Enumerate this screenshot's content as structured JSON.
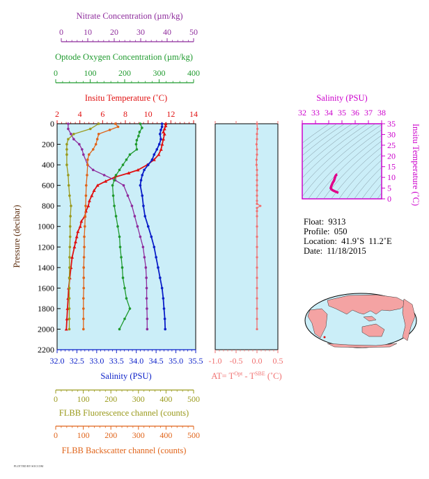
{
  "colors": {
    "nitrate": "#8e2c9c",
    "oxygen": "#1f9a2e",
    "temperature": "#e01010",
    "salinity": "#0b1fc8",
    "fluorescence": "#9a9a1c",
    "backscatter": "#e0641a",
    "at": "#f07070",
    "plot_bg": "#cbeef8",
    "map_land": "#f4a3a3",
    "ts_curve": "#e0008a",
    "ts_axis": "#cc00cc"
  },
  "axes": {
    "nitrate": {
      "label": "Nitrate Concentration (µm/kg)",
      "ticks": [
        "0",
        "10",
        "20",
        "30",
        "40",
        "50"
      ]
    },
    "oxygen": {
      "label": "Optode Oxygen Concentration (µm/kg)",
      "ticks": [
        "0",
        "100",
        "200",
        "300",
        "400"
      ]
    },
    "temperature": {
      "label": "Insitu Temperature (˚C)",
      "ticks": [
        "2",
        "4",
        "6",
        "8",
        "10",
        "12",
        "14"
      ]
    },
    "pressure": {
      "label": "Pressure (decibar)",
      "ticks": [
        "0",
        "200",
        "400",
        "600",
        "800",
        "1000",
        "1200",
        "1400",
        "1600",
        "1800",
        "2000",
        "2200"
      ]
    },
    "salinity": {
      "label": "Salinity (PSU)",
      "ticks": [
        "32.0",
        "32.5",
        "33.0",
        "33.5",
        "34.0",
        "34.5",
        "35.0",
        "35.5"
      ]
    },
    "fluorescence": {
      "label": "FLBB Fluorescence channel (counts)",
      "ticks": [
        "0",
        "100",
        "200",
        "300",
        "400",
        "500"
      ]
    },
    "backscatter": {
      "label": "FLBB Backscatter channel (counts)",
      "ticks": [
        "0",
        "100",
        "200",
        "300",
        "400",
        "500"
      ]
    },
    "at": {
      "label_prefix": "AT= T",
      "sup1": "Opt",
      "label_mid": " - T",
      "sup2": "SBE",
      "label_suffix": " (˚C)",
      "ticks": [
        "-1.0",
        "-0.5",
        "0.0",
        "0.5"
      ]
    },
    "ts_salinity": {
      "label": "Salinity (PSU)",
      "ticks": [
        "32",
        "33",
        "34",
        "35",
        "36",
        "37",
        "38"
      ]
    },
    "ts_temperature": {
      "label": "Insitu Temperature (˚C)",
      "ticks": [
        "0",
        "5",
        "10",
        "15",
        "20",
        "25",
        "30",
        "35"
      ]
    }
  },
  "info": {
    "float": "Float:  9313",
    "profile": "Profile:  050",
    "location": "Location:  41.9˚S  11.2˚E",
    "date": "Date:  11/18/2015"
  },
  "footer_tiny": "PLOTTED BY SOCCOM",
  "chart_data": [
    {
      "type": "line",
      "title": "",
      "ylabel": "Pressure (decibar)",
      "ylim": [
        2200,
        0
      ],
      "grid": false,
      "series": [
        {
          "name": "Insitu Temperature (˚C)",
          "xlim": [
            2,
            14
          ],
          "points": [
            [
              11.4,
              0
            ],
            [
              11.4,
              20
            ],
            [
              11.3,
              50
            ],
            [
              11.2,
              80
            ],
            [
              11.3,
              100
            ],
            [
              11.2,
              150
            ],
            [
              11.1,
              200
            ],
            [
              11.0,
              250
            ],
            [
              10.8,
              300
            ],
            [
              10.4,
              350
            ],
            [
              9.8,
              400
            ],
            [
              9.0,
              450
            ],
            [
              8.2,
              480
            ],
            [
              7.0,
              520
            ],
            [
              6.2,
              560
            ],
            [
              5.5,
              600
            ],
            [
              5.2,
              650
            ],
            [
              5.0,
              700
            ],
            [
              4.8,
              750
            ],
            [
              4.7,
              800
            ],
            [
              4.5,
              850
            ],
            [
              4.4,
              900
            ],
            [
              4.1,
              950
            ],
            [
              4.0,
              1000
            ],
            [
              3.8,
              1050
            ],
            [
              3.7,
              1100
            ],
            [
              3.6,
              1150
            ],
            [
              3.5,
              1200
            ],
            [
              3.3,
              1300
            ],
            [
              3.2,
              1400
            ],
            [
              3.1,
              1500
            ],
            [
              3.0,
              1600
            ],
            [
              2.95,
              1700
            ],
            [
              2.9,
              1800
            ],
            [
              2.85,
              1900
            ],
            [
              2.8,
              2000
            ]
          ]
        },
        {
          "name": "Salinity (PSU)",
          "xlim": [
            32.0,
            35.5
          ],
          "points": [
            [
              34.65,
              0
            ],
            [
              34.65,
              30
            ],
            [
              34.62,
              60
            ],
            [
              34.6,
              100
            ],
            [
              34.62,
              150
            ],
            [
              34.58,
              200
            ],
            [
              34.52,
              250
            ],
            [
              34.45,
              300
            ],
            [
              34.4,
              350
            ],
            [
              34.3,
              400
            ],
            [
              34.2,
              450
            ],
            [
              34.15,
              500
            ],
            [
              34.12,
              550
            ],
            [
              34.1,
              600
            ],
            [
              34.15,
              700
            ],
            [
              34.18,
              800
            ],
            [
              34.22,
              900
            ],
            [
              34.3,
              1000
            ],
            [
              34.38,
              1100
            ],
            [
              34.45,
              1200
            ],
            [
              34.5,
              1300
            ],
            [
              34.55,
              1400
            ],
            [
              34.6,
              1500
            ],
            [
              34.65,
              1600
            ],
            [
              34.68,
              1700
            ],
            [
              34.7,
              1800
            ],
            [
              34.72,
              1900
            ],
            [
              34.73,
              2000
            ]
          ]
        },
        {
          "name": "Nitrate Concentration (µm/kg)",
          "xlim": [
            0,
            50
          ],
          "points": [
            [
              4,
              0
            ],
            [
              4,
              50
            ],
            [
              5,
              100
            ],
            [
              6,
              150
            ],
            [
              8,
              200
            ],
            [
              9,
              250
            ],
            [
              9.5,
              300
            ],
            [
              11,
              400
            ],
            [
              13,
              450
            ],
            [
              17,
              500
            ],
            [
              21,
              550
            ],
            [
              24,
              600
            ],
            [
              25.5,
              700
            ],
            [
              27,
              800
            ],
            [
              28,
              900
            ],
            [
              29,
              1000
            ],
            [
              30,
              1100
            ],
            [
              31,
              1200
            ],
            [
              31.5,
              1300
            ],
            [
              32,
              1400
            ],
            [
              32.2,
              1500
            ],
            [
              32.3,
              1600
            ],
            [
              32.3,
              1700
            ],
            [
              32.4,
              1800
            ],
            [
              32.5,
              1900
            ],
            [
              32.5,
              2000
            ]
          ]
        },
        {
          "name": "Optode Oxygen Concentration (µm/kg)",
          "xlim": [
            0,
            400
          ],
          "points": [
            [
              240,
              0
            ],
            [
              245,
              40
            ],
            [
              238,
              80
            ],
            [
              235,
              120
            ],
            [
              230,
              160
            ],
            [
              228,
              200
            ],
            [
              230,
              250
            ],
            [
              210,
              300
            ],
            [
              200,
              350
            ],
            [
              190,
              400
            ],
            [
              180,
              450
            ],
            [
              170,
              500
            ],
            [
              165,
              550
            ],
            [
              160,
              600
            ],
            [
              162,
              700
            ],
            [
              165,
              800
            ],
            [
              170,
              900
            ],
            [
              175,
              1000
            ],
            [
              180,
              1100
            ],
            [
              182,
              1200
            ],
            [
              185,
              1300
            ],
            [
              188,
              1400
            ],
            [
              190,
              1500
            ],
            [
              195,
              1600
            ],
            [
              200,
              1700
            ],
            [
              210,
              1800
            ],
            [
              195,
              1900
            ],
            [
              180,
              2000
            ]
          ]
        },
        {
          "name": "FLBB Fluorescence channel (counts)",
          "xlim": [
            0,
            500
          ],
          "points": [
            [
              150,
              0
            ],
            [
              120,
              50
            ],
            [
              60,
              100
            ],
            [
              40,
              150
            ],
            [
              35,
              200
            ],
            [
              35,
              250
            ],
            [
              35,
              300
            ],
            [
              35,
              400
            ],
            [
              40,
              500
            ],
            [
              42,
              600
            ],
            [
              45,
              700
            ],
            [
              50,
              800
            ],
            [
              48,
              900
            ],
            [
              47,
              1000
            ],
            [
              47,
              1100
            ],
            [
              46,
              1200
            ],
            [
              45,
              1300
            ],
            [
              45,
              1400
            ],
            [
              44,
              1500
            ],
            [
              44,
              1600
            ],
            [
              44,
              1700
            ],
            [
              44,
              1800
            ],
            [
              44,
              1900
            ],
            [
              44,
              2000
            ]
          ]
        },
        {
          "name": "FLBB Backscatter channel (counts)",
          "xlim": [
            0,
            500
          ],
          "points": [
            [
              210,
              0
            ],
            [
              220,
              30
            ],
            [
              190,
              60
            ],
            [
              150,
              100
            ],
            [
              145,
              150
            ],
            [
              140,
              200
            ],
            [
              130,
              250
            ],
            [
              115,
              300
            ],
            [
              110,
              350
            ],
            [
              110,
              400
            ],
            [
              108,
              500
            ],
            [
              105,
              600
            ],
            [
              104,
              700
            ],
            [
              103,
              800
            ],
            [
              101,
              900
            ],
            [
              100,
              1000
            ],
            [
              98,
              1100
            ],
            [
              98,
              1200
            ],
            [
              97,
              1300
            ],
            [
              96,
              1400
            ],
            [
              96,
              1500
            ],
            [
              96,
              1600
            ],
            [
              95,
              1700
            ],
            [
              95,
              1800
            ],
            [
              95,
              1900
            ],
            [
              95,
              2000
            ]
          ]
        }
      ]
    },
    {
      "type": "line",
      "title": "",
      "xlabel": "AT= TOpt - TSBE (˚C)",
      "xlim": [
        -1.0,
        0.5
      ],
      "ylim": [
        2200,
        0
      ],
      "series": [
        {
          "name": "AT",
          "points": [
            [
              0.0,
              0
            ],
            [
              0.01,
              50
            ],
            [
              0.0,
              100
            ],
            [
              0.0,
              150
            ],
            [
              -0.01,
              200
            ],
            [
              0.0,
              250
            ],
            [
              0.0,
              300
            ],
            [
              -0.01,
              350
            ],
            [
              -0.01,
              400
            ],
            [
              0.0,
              450
            ],
            [
              0.0,
              500
            ],
            [
              0.0,
              550
            ],
            [
              0.0,
              600
            ],
            [
              0.0,
              650
            ],
            [
              0.0,
              700
            ],
            [
              0.0,
              750
            ],
            [
              0.0,
              780
            ],
            [
              0.08,
              800
            ],
            [
              0.0,
              820
            ],
            [
              0.0,
              850
            ],
            [
              0.0,
              900
            ],
            [
              0.0,
              1000
            ],
            [
              0.0,
              1100
            ],
            [
              0.0,
              1200
            ],
            [
              0.0,
              1300
            ],
            [
              0.0,
              1400
            ],
            [
              0.0,
              1500
            ],
            [
              0.0,
              1600
            ],
            [
              0.0,
              1700
            ],
            [
              0.0,
              1800
            ],
            [
              0.0,
              1900
            ],
            [
              0.0,
              2000
            ]
          ]
        }
      ]
    },
    {
      "type": "line",
      "title": "",
      "xlabel": "Salinity (PSU)",
      "ylabel": "Insitu Temperature (˚C)",
      "xlim": [
        32,
        38
      ],
      "ylim": [
        0,
        35
      ],
      "series": [
        {
          "name": "T-S",
          "points": [
            [
              34.73,
              2.8
            ],
            [
              34.65,
              3.0
            ],
            [
              34.55,
              3.3
            ],
            [
              34.4,
              3.7
            ],
            [
              34.3,
              4.0
            ],
            [
              34.2,
              4.5
            ],
            [
              34.15,
              5.0
            ],
            [
              34.2,
              6.0
            ],
            [
              34.3,
              7.5
            ],
            [
              34.4,
              8.5
            ],
            [
              34.45,
              9.5
            ],
            [
              34.5,
              10.5
            ],
            [
              34.55,
              11.0
            ],
            [
              34.6,
              11.3
            ],
            [
              34.65,
              11.4
            ]
          ]
        }
      ]
    }
  ]
}
